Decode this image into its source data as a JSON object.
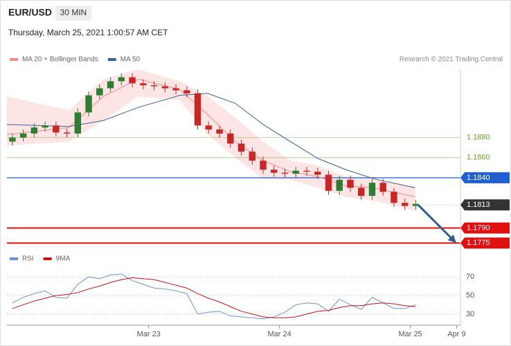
{
  "chart_data": {
    "type": "candlestick",
    "title": "EUR/USD",
    "timeframe": "30 MIN",
    "subtitle": "Thursday, March 25, 2021 1:00:57 AM CET",
    "attribution": "Research © 2021 Trading.Central",
    "up_color": "#2e7d32",
    "down_color": "#c62828",
    "x": [
      -1,
      1,
      3,
      5,
      7,
      9,
      11,
      13,
      15,
      17,
      19,
      21,
      23,
      25,
      27,
      29,
      31,
      33,
      35,
      37,
      39,
      41,
      43,
      45,
      47,
      49,
      51,
      53,
      55,
      57,
      59,
      61,
      63,
      65,
      67,
      69,
      71,
      73
    ],
    "open": [
      1.1876,
      1.188,
      1.1884,
      1.189,
      1.1892,
      1.1885,
      1.1884,
      1.1905,
      1.1922,
      1.1929,
      1.1936,
      1.194,
      1.1934,
      1.1932,
      1.1931,
      1.1929,
      1.1927,
      1.1924,
      1.1892,
      1.1888,
      1.1884,
      1.1874,
      1.1866,
      1.1857,
      1.1848,
      1.1845,
      1.1844,
      1.1847,
      1.1846,
      1.1843,
      1.1827,
      1.1838,
      1.183,
      1.1822,
      1.1835,
      1.1826,
      1.1815,
      1.1812
    ],
    "high": [
      1.1884,
      1.1888,
      1.1894,
      1.1896,
      1.1896,
      1.1889,
      1.1909,
      1.1926,
      1.1933,
      1.194,
      1.1944,
      1.1944,
      1.1938,
      1.1936,
      1.1935,
      1.1933,
      1.1931,
      1.1928,
      1.1896,
      1.1892,
      1.1888,
      1.1878,
      1.187,
      1.1861,
      1.1852,
      1.1849,
      1.1851,
      1.1851,
      1.185,
      1.1847,
      1.1842,
      1.1842,
      1.1834,
      1.1839,
      1.1839,
      1.183,
      1.1819,
      1.1818
    ],
    "low": [
      1.1872,
      1.1876,
      1.188,
      1.1886,
      1.1881,
      1.188,
      1.188,
      1.1901,
      1.1918,
      1.1925,
      1.1932,
      1.193,
      1.1928,
      1.1927,
      1.1925,
      1.1923,
      1.192,
      1.1888,
      1.1884,
      1.188,
      1.187,
      1.1862,
      1.1853,
      1.1844,
      1.1841,
      1.184,
      1.184,
      1.1842,
      1.1839,
      1.1823,
      1.1823,
      1.1826,
      1.1818,
      1.1818,
      1.1822,
      1.1811,
      1.1808,
      1.1808
    ],
    "close": [
      1.188,
      1.1884,
      1.189,
      1.1892,
      1.1885,
      1.1884,
      1.1905,
      1.1922,
      1.1929,
      1.1936,
      1.194,
      1.1934,
      1.1932,
      1.1931,
      1.1929,
      1.1927,
      1.1924,
      1.1892,
      1.1888,
      1.1884,
      1.1874,
      1.1866,
      1.1857,
      1.1848,
      1.1845,
      1.1844,
      1.1847,
      1.1846,
      1.1843,
      1.1827,
      1.1838,
      1.183,
      1.1822,
      1.1835,
      1.1826,
      1.1815,
      1.1812,
      1.1814
    ],
    "overlays": [
      {
        "name": "MA 20 + Bollinger Bands",
        "color": "#f28b8b",
        "band_color": "#fde0e0",
        "x": [
          -2,
          9.4,
          15.7,
          22.1,
          29.7,
          34.8,
          39.9,
          45,
          50,
          55.1,
          60.2,
          65.3,
          72.9
        ],
        "values": [
          1.1883,
          1.189,
          1.1921,
          1.1938,
          1.1928,
          1.1903,
          1.1876,
          1.1857,
          1.1846,
          1.1841,
          1.1832,
          1.183,
          1.1821
        ],
        "upper": [
          1.1921,
          1.1907,
          1.1938,
          1.1948,
          1.1936,
          1.1921,
          1.19,
          1.1876,
          1.1857,
          1.1852,
          1.1841,
          1.1839,
          1.1831
        ],
        "lower": [
          1.1872,
          1.1876,
          1.1897,
          1.1921,
          1.1917,
          1.1883,
          1.186,
          1.1839,
          1.1838,
          1.183,
          1.1821,
          1.1817,
          1.1807
        ]
      },
      {
        "name": "MA 50",
        "color": "#3a5f95",
        "x": [
          -2,
          9.4,
          15.7,
          22.1,
          29.7,
          34.8,
          39.9,
          45,
          50,
          55.1,
          60.2,
          65.3,
          72.9
        ],
        "values": [
          1.1893,
          1.1891,
          1.1897,
          1.191,
          1.1922,
          1.1924,
          1.1914,
          1.1893,
          1.1876,
          1.1859,
          1.1848,
          1.1839,
          1.183
        ]
      }
    ],
    "levels": [
      {
        "value": 1.188,
        "label": "1.1880",
        "color": "#6aa62a",
        "boxed": false,
        "line_width": 0.8
      },
      {
        "value": 1.186,
        "label": "1.1860",
        "color": "#6aa62a",
        "boxed": false,
        "line_width": 0.8
      },
      {
        "value": 1.184,
        "label": "1.1840",
        "color": "#1f5fd1",
        "boxed": true,
        "line_width": 1.2
      },
      {
        "value": 1.1813,
        "label": "1.1813",
        "color": "#333333",
        "boxed": true,
        "line_width": 0,
        "dotted": true
      },
      {
        "value": 1.179,
        "label": "1.1790",
        "color": "#e01010",
        "boxed": true,
        "line_width": 2
      },
      {
        "value": 1.1775,
        "label": "1.1775",
        "color": "#e01010",
        "boxed": true,
        "line_width": 2
      }
    ],
    "target": 1.1775,
    "arrow_color": "#2f5d8a",
    "xlim": [
      -2,
      81.2
    ],
    "ylim": [
      1.1769,
      1.1948
    ],
    "xticks": [
      {
        "value": 24,
        "label": "Mar 23"
      },
      {
        "value": 48,
        "label": "Mar 24"
      },
      {
        "value": 72,
        "label": "Mar 25"
      },
      {
        "value": 80.5,
        "label": "Apr 9"
      }
    ],
    "rsi": {
      "ylim": [
        18,
        77.5
      ],
      "yticks": [
        30,
        50,
        70
      ],
      "series": [
        {
          "name": "RSI",
          "color": "#6b8fd6",
          "values": [
            42,
            48,
            52,
            55,
            48,
            47,
            62,
            70,
            68,
            72,
            73,
            66,
            62,
            58,
            57,
            55,
            52,
            30,
            32,
            33,
            28,
            27,
            26,
            25,
            27,
            32,
            40,
            42,
            41,
            33,
            46,
            40,
            35,
            48,
            42,
            36,
            36,
            40
          ]
        },
        {
          "name": "9MA",
          "color": "#cc1111",
          "values": [
            36,
            40,
            44,
            47,
            50,
            51,
            53,
            57,
            60,
            64,
            67,
            69,
            68,
            67,
            64,
            61,
            58,
            52,
            47,
            43,
            38,
            33,
            30,
            27,
            26,
            26,
            27,
            30,
            33,
            34,
            37,
            39,
            39,
            41,
            42,
            41,
            39,
            38
          ]
        }
      ]
    }
  }
}
